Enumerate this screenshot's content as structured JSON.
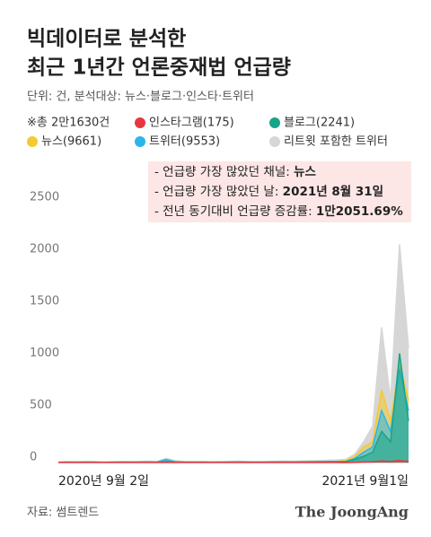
{
  "chart_data": {
    "type": "area",
    "title": [
      "빅데이터로 분석한",
      "최근 1년간 언론중재법 언급량"
    ],
    "subtitle": "단위: 건, 분석대상: 뉴스·블로그·인스타·트위터",
    "total_note": "※총 2만1630건",
    "annotations": [
      {
        "label": "- 언급량 가장 많았던 채널:",
        "value": "뉴스"
      },
      {
        "label": "- 언급량 가장 많았던 날:",
        "value": "2021년 8월 31일"
      },
      {
        "label": "- 전년 동기대비 언급량 증감률:",
        "value": "1만2051.69%"
      }
    ],
    "categories": [
      "2020년 9월 2일",
      null,
      null,
      null,
      null,
      null,
      null,
      null,
      null,
      null,
      null,
      null,
      null,
      null,
      null,
      null,
      null,
      null,
      null,
      null,
      null,
      null,
      null,
      null,
      null,
      null,
      null,
      null,
      null,
      null,
      null,
      null,
      null,
      null,
      null,
      null,
      null,
      null,
      null,
      "2021년 9월1일"
    ],
    "series": [
      {
        "name": "리트윗 포함한 트위터",
        "color": "#d6d6d6",
        "values": [
          8,
          10,
          9,
          12,
          10,
          8,
          9,
          11,
          10,
          12,
          14,
          12,
          40,
          20,
          12,
          10,
          11,
          9,
          10,
          12,
          14,
          12,
          10,
          11,
          13,
          15,
          14,
          16,
          18,
          20,
          22,
          25,
          30,
          80,
          200,
          350,
          1300,
          600,
          2100,
          1100
        ]
      },
      {
        "name": "뉴스(9661)",
        "color": "#f5c932",
        "values": [
          4,
          5,
          5,
          6,
          5,
          4,
          5,
          6,
          5,
          6,
          7,
          6,
          20,
          10,
          6,
          5,
          6,
          5,
          5,
          6,
          7,
          6,
          5,
          6,
          7,
          8,
          7,
          8,
          9,
          10,
          11,
          12,
          20,
          60,
          150,
          200,
          700,
          400,
          950,
          600
        ]
      },
      {
        "name": "트위터(9553)",
        "color": "#29b6e8",
        "values": [
          3,
          4,
          4,
          5,
          4,
          3,
          4,
          5,
          4,
          5,
          6,
          5,
          30,
          8,
          5,
          4,
          5,
          4,
          4,
          5,
          6,
          5,
          4,
          5,
          6,
          7,
          6,
          7,
          8,
          9,
          10,
          10,
          10,
          40,
          100,
          150,
          500,
          300,
          900,
          500
        ]
      },
      {
        "name": "블로그(2241)",
        "color": "#16a589",
        "values": [
          2,
          3,
          3,
          3,
          3,
          2,
          3,
          3,
          3,
          3,
          4,
          3,
          10,
          5,
          3,
          3,
          3,
          3,
          3,
          3,
          4,
          3,
          3,
          3,
          4,
          4,
          4,
          5,
          5,
          6,
          7,
          8,
          10,
          30,
          60,
          100,
          300,
          200,
          1050,
          400
        ]
      },
      {
        "name": "인스타그램(175)",
        "color": "#e8363f",
        "values": [
          1,
          1,
          1,
          1,
          1,
          1,
          1,
          1,
          1,
          1,
          1,
          1,
          1,
          1,
          1,
          1,
          1,
          1,
          1,
          1,
          1,
          1,
          1,
          1,
          1,
          1,
          1,
          1,
          1,
          1,
          1,
          1,
          0,
          2,
          5,
          8,
          15,
          10,
          20,
          10
        ]
      }
    ],
    "ylim": [
      0,
      2500
    ],
    "yticks": [
      0,
      500,
      1000,
      1500,
      2000,
      2500
    ],
    "source": "자료: 썸트렌드",
    "brand": "The JoongAng"
  }
}
